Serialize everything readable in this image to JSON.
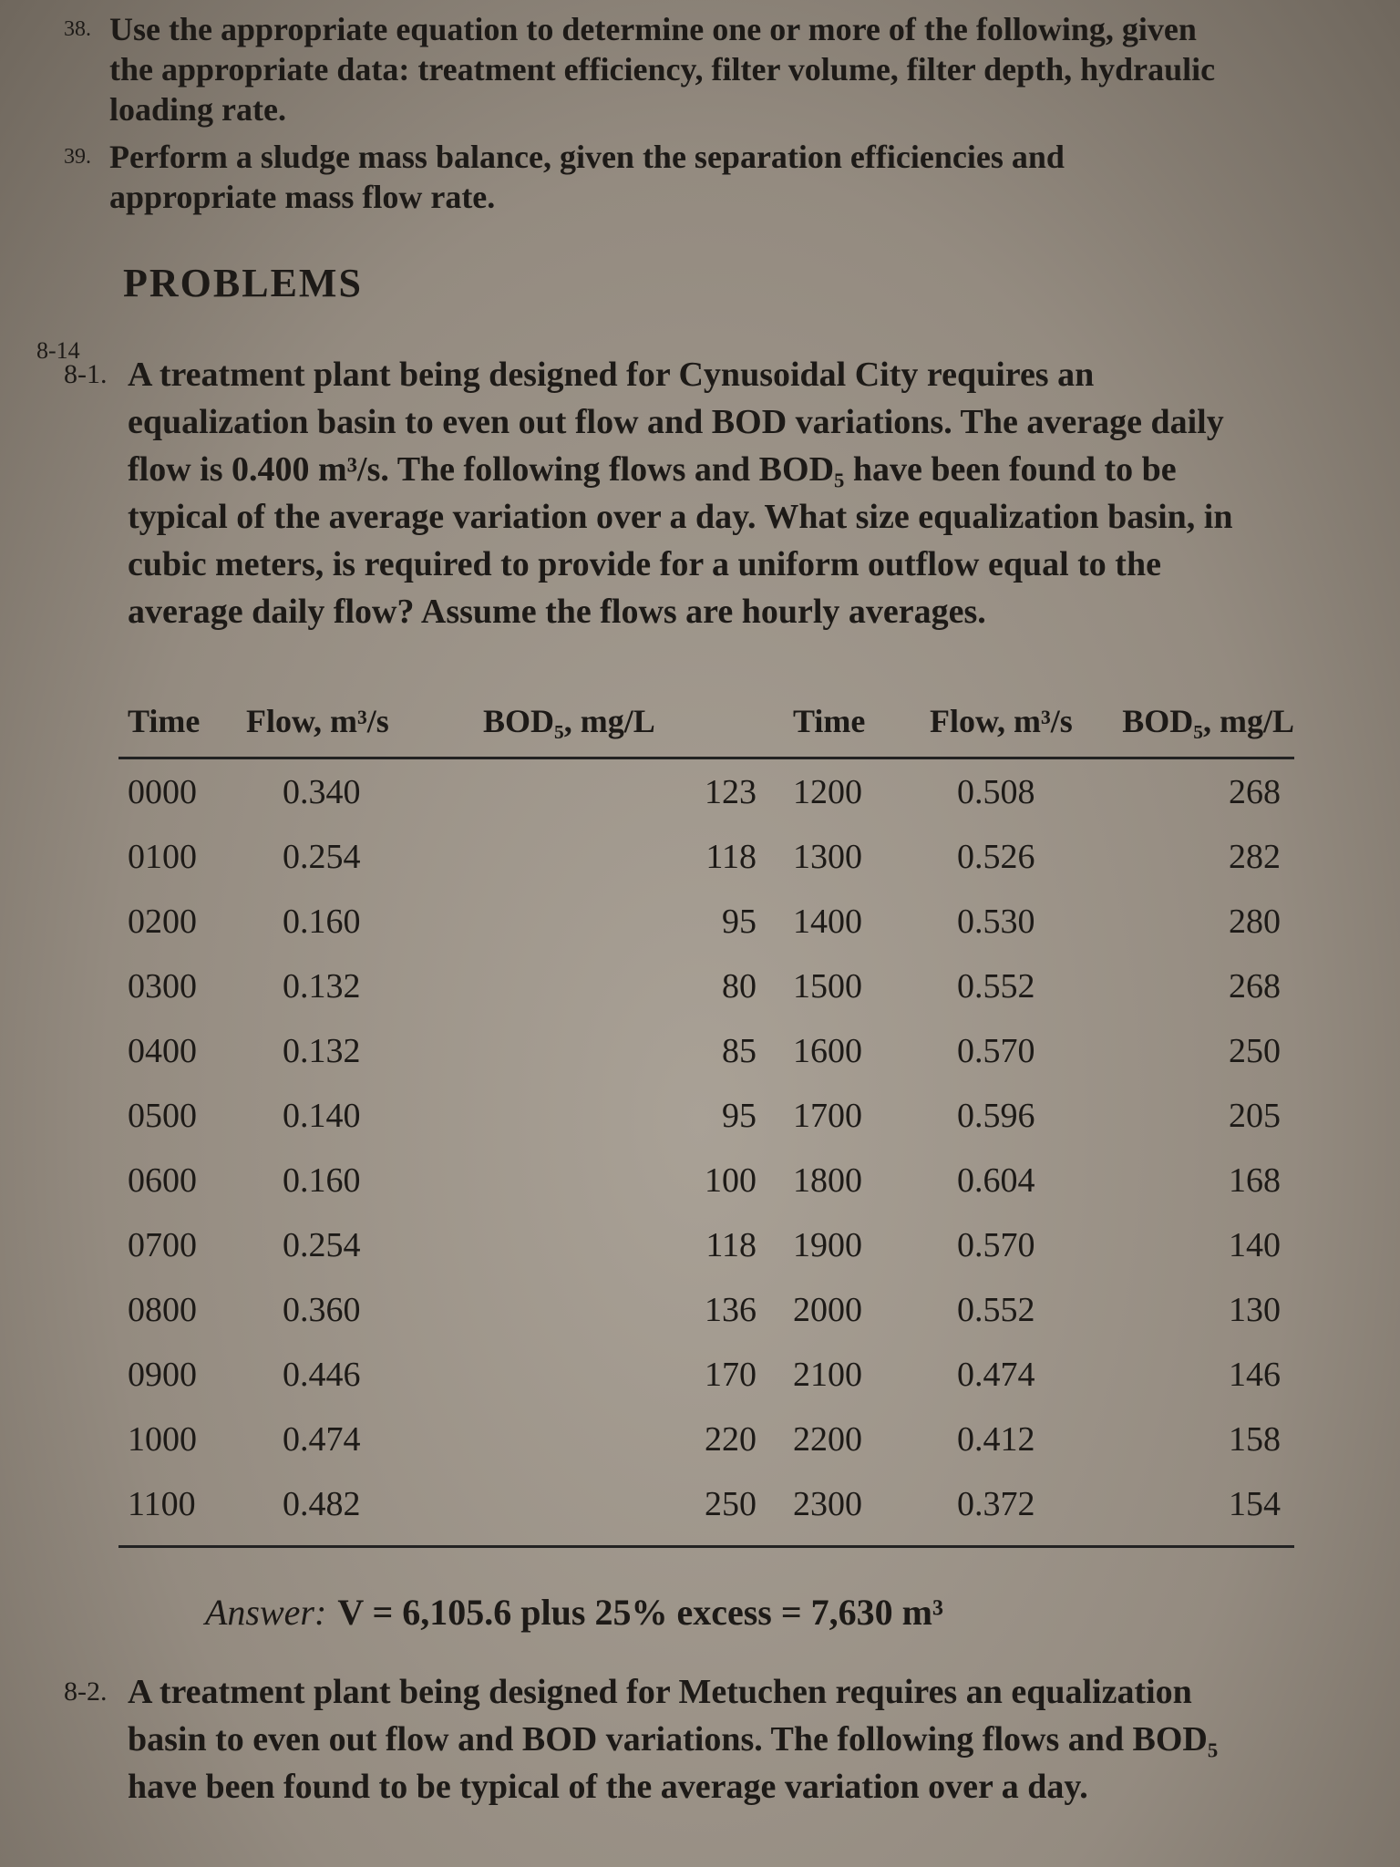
{
  "objectives": [
    {
      "number": "38.",
      "text": "Use the appropriate equation to determine one or more of the following, given the appropriate data: treatment efficiency, filter volume, filter depth, hydraulic loading rate."
    },
    {
      "number": "39.",
      "text": "Perform a sludge mass balance, given the separation efficiencies and appropriate mass flow rate."
    }
  ],
  "section": {
    "margin_note": "8-14",
    "title": "PROBLEMS"
  },
  "problems": [
    {
      "number": "8-1.",
      "text": "A treatment plant being designed for Cynusoidal City requires an equalization basin to even out flow and BOD variations. The average daily flow is 0.400 m³/s. The following flows and BOD₅ have been found to be typical of the average variation over a day. What size equalization basin, in cubic meters, is required to provide for a uniform outflow equal to the average daily flow? Assume the flows are hourly averages."
    },
    {
      "number": "8-2.",
      "text": "A treatment plant being designed for Metuchen requires an equalization basin to even out flow and BOD variations. The following flows and BOD₅ have been found to be typical of the average variation over a day."
    }
  ],
  "table": {
    "headers": [
      "Time",
      "Flow, m³/s",
      "BOD₅, mg/L",
      "Time",
      "Flow, m³/s",
      "BOD₅, mg/L"
    ],
    "rows": [
      [
        "0000",
        "0.340",
        "123",
        "1200",
        "0.508",
        "268"
      ],
      [
        "0100",
        "0.254",
        "118",
        "1300",
        "0.526",
        "282"
      ],
      [
        "0200",
        "0.160",
        "95",
        "1400",
        "0.530",
        "280"
      ],
      [
        "0300",
        "0.132",
        "80",
        "1500",
        "0.552",
        "268"
      ],
      [
        "0400",
        "0.132",
        "85",
        "1600",
        "0.570",
        "250"
      ],
      [
        "0500",
        "0.140",
        "95",
        "1700",
        "0.596",
        "205"
      ],
      [
        "0600",
        "0.160",
        "100",
        "1800",
        "0.604",
        "168"
      ],
      [
        "0700",
        "0.254",
        "118",
        "1900",
        "0.570",
        "140"
      ],
      [
        "0800",
        "0.360",
        "136",
        "2000",
        "0.552",
        "130"
      ],
      [
        "0900",
        "0.446",
        "170",
        "2100",
        "0.474",
        "146"
      ],
      [
        "1000",
        "0.474",
        "220",
        "2200",
        "0.412",
        "158"
      ],
      [
        "1100",
        "0.482",
        "250",
        "2300",
        "0.372",
        "154"
      ]
    ]
  },
  "answer": {
    "label": "Answer:",
    "text": "V = 6,105.6 plus 25% excess = 7,630 m³"
  }
}
